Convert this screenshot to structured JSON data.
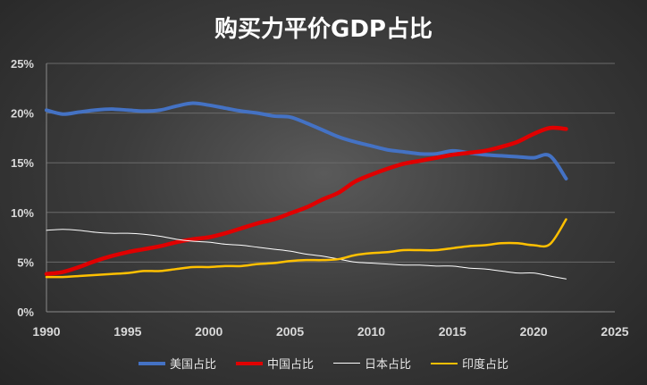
{
  "chart_data": {
    "type": "line",
    "title": "购买力平价GDP占比",
    "xlabel": "",
    "ylabel": "",
    "xlim": [
      1990,
      2025
    ],
    "ylim": [
      0,
      25
    ],
    "x_ticks": [
      "1990",
      "1995",
      "2000",
      "2005",
      "2010",
      "2015",
      "2020",
      "2025"
    ],
    "y_ticks": [
      "0%",
      "5%",
      "10%",
      "15%",
      "20%",
      "25%"
    ],
    "grid": true,
    "legend_position": "bottom",
    "x": [
      1990,
      1991,
      1992,
      1993,
      1994,
      1995,
      1996,
      1997,
      1998,
      1999,
      2000,
      2001,
      2002,
      2003,
      2004,
      2005,
      2006,
      2007,
      2008,
      2009,
      2010,
      2011,
      2012,
      2013,
      2014,
      2015,
      2016,
      2017,
      2018,
      2019,
      2020,
      2021,
      2022
    ],
    "series": [
      {
        "name": "美国占比",
        "color": "#4472C4",
        "width": 4,
        "values": [
          20.3,
          19.9,
          20.1,
          20.3,
          20.4,
          20.3,
          20.2,
          20.3,
          20.7,
          21.0,
          20.8,
          20.5,
          20.2,
          20.0,
          19.7,
          19.6,
          19.0,
          18.3,
          17.6,
          17.1,
          16.7,
          16.3,
          16.1,
          15.9,
          15.9,
          16.2,
          16.0,
          15.8,
          15.7,
          15.6,
          15.5,
          15.7,
          13.4
        ]
      },
      {
        "name": "中国占比",
        "color": "#E00000",
        "width": 4.5,
        "values": [
          3.8,
          4.0,
          4.5,
          5.1,
          5.6,
          6.0,
          6.3,
          6.6,
          7.0,
          7.3,
          7.5,
          7.9,
          8.4,
          8.9,
          9.3,
          9.9,
          10.5,
          11.3,
          12.0,
          13.1,
          13.8,
          14.4,
          14.9,
          15.2,
          15.5,
          15.8,
          16.0,
          16.2,
          16.6,
          17.1,
          17.9,
          18.5,
          18.4
        ]
      },
      {
        "name": "日本占比",
        "color": "#FFFFFF",
        "width": 1,
        "values": [
          8.2,
          8.3,
          8.2,
          8.0,
          7.9,
          7.9,
          7.8,
          7.6,
          7.3,
          7.1,
          7.0,
          6.8,
          6.7,
          6.5,
          6.3,
          6.1,
          5.8,
          5.6,
          5.3,
          5.0,
          4.9,
          4.8,
          4.7,
          4.7,
          4.6,
          4.6,
          4.4,
          4.3,
          4.1,
          3.9,
          3.9,
          3.6,
          3.3
        ]
      },
      {
        "name": "印度占比",
        "color": "#FFC000",
        "width": 2.5,
        "values": [
          3.5,
          3.5,
          3.6,
          3.7,
          3.8,
          3.9,
          4.1,
          4.1,
          4.3,
          4.5,
          4.5,
          4.6,
          4.6,
          4.8,
          4.9,
          5.1,
          5.2,
          5.2,
          5.3,
          5.7,
          5.9,
          6.0,
          6.2,
          6.2,
          6.2,
          6.4,
          6.6,
          6.7,
          6.9,
          6.9,
          6.7,
          6.8,
          9.3
        ]
      }
    ]
  }
}
